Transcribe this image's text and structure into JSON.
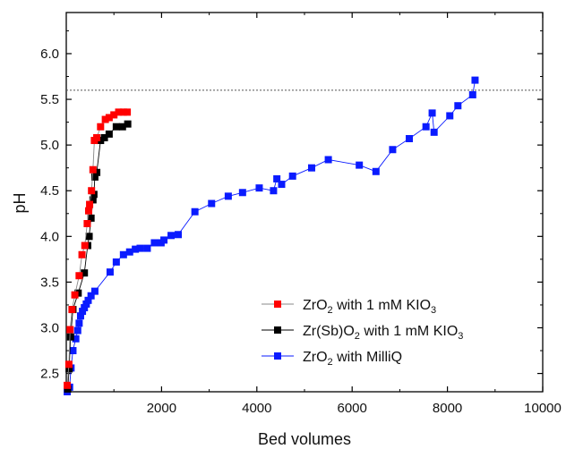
{
  "chart_data": {
    "type": "scatter",
    "title": "",
    "xlabel": "Bed volumes",
    "ylabel": "pH",
    "xlim": [
      0,
      10000
    ],
    "ylim": [
      2.3,
      6.45
    ],
    "x_ticks": [
      2000,
      4000,
      6000,
      8000,
      10000
    ],
    "y_ticks": [
      2.5,
      3.0,
      3.5,
      4.0,
      4.5,
      5.0,
      5.5,
      6.0
    ],
    "x_tick_labels": [
      "2000",
      "4000",
      "6000",
      "8000",
      "10000"
    ],
    "y_tick_labels": [
      "2.5",
      "3.0",
      "3.5",
      "4.0",
      "4.5",
      "5.0",
      "5.5",
      "6.0"
    ],
    "grid": false,
    "legend_position": "lower-right",
    "reference_lines": [
      {
        "y": 5.6,
        "style": "dotted",
        "color": "#555555"
      }
    ],
    "series": [
      {
        "legend": {
          "base": "ZrO",
          "sub": "2",
          "suffix": " with 1 mM KIO",
          "sub2": "3"
        },
        "color": "#ff0000",
        "line_color": "#888888",
        "marker": "square",
        "points": [
          [
            20,
            2.37
          ],
          [
            55,
            2.6
          ],
          [
            80,
            2.98
          ],
          [
            120,
            3.2
          ],
          [
            180,
            3.36
          ],
          [
            270,
            3.57
          ],
          [
            330,
            3.8
          ],
          [
            390,
            3.9
          ],
          [
            440,
            4.14
          ],
          [
            470,
            4.28
          ],
          [
            490,
            4.35
          ],
          [
            530,
            4.5
          ],
          [
            560,
            4.73
          ],
          [
            590,
            5.05
          ],
          [
            640,
            5.08
          ],
          [
            720,
            5.2
          ],
          [
            820,
            5.28
          ],
          [
            900,
            5.3
          ],
          [
            1000,
            5.33
          ],
          [
            1100,
            5.36
          ],
          [
            1200,
            5.36
          ],
          [
            1280,
            5.36
          ]
        ]
      },
      {
        "legend": {
          "base": "Zr(Sb)O",
          "sub": "2",
          "suffix": " with 1 mM KIO",
          "sub2": "3"
        },
        "color": "#000000",
        "line_color": "#000000",
        "marker": "square",
        "points": [
          [
            30,
            2.33
          ],
          [
            60,
            2.55
          ],
          [
            90,
            2.9
          ],
          [
            140,
            3.2
          ],
          [
            250,
            3.38
          ],
          [
            380,
            3.6
          ],
          [
            450,
            3.9
          ],
          [
            480,
            4.0
          ],
          [
            520,
            4.2
          ],
          [
            560,
            4.4
          ],
          [
            580,
            4.46
          ],
          [
            600,
            4.65
          ],
          [
            640,
            4.7
          ],
          [
            720,
            5.05
          ],
          [
            800,
            5.08
          ],
          [
            900,
            5.12
          ],
          [
            1050,
            5.2
          ],
          [
            1180,
            5.2
          ],
          [
            1290,
            5.23
          ]
        ]
      },
      {
        "legend": {
          "base": "ZrO",
          "sub": "2",
          "suffix": " with MilliQ",
          "sub2": ""
        },
        "color": "#0a1bff",
        "line_color": "#0a1bff",
        "marker": "square",
        "points": [
          [
            20,
            2.3
          ],
          [
            70,
            2.35
          ],
          [
            100,
            2.56
          ],
          [
            140,
            2.75
          ],
          [
            200,
            2.88
          ],
          [
            240,
            2.97
          ],
          [
            270,
            3.05
          ],
          [
            300,
            3.13
          ],
          [
            340,
            3.18
          ],
          [
            380,
            3.22
          ],
          [
            420,
            3.26
          ],
          [
            460,
            3.3
          ],
          [
            520,
            3.35
          ],
          [
            600,
            3.4
          ],
          [
            920,
            3.61
          ],
          [
            1050,
            3.72
          ],
          [
            1200,
            3.8
          ],
          [
            1330,
            3.83
          ],
          [
            1450,
            3.86
          ],
          [
            1550,
            3.87
          ],
          [
            1700,
            3.87
          ],
          [
            1850,
            3.93
          ],
          [
            1990,
            3.93
          ],
          [
            2050,
            3.96
          ],
          [
            2200,
            4.01
          ],
          [
            2350,
            4.02
          ],
          [
            2700,
            4.27
          ],
          [
            3050,
            4.36
          ],
          [
            3400,
            4.44
          ],
          [
            3700,
            4.48
          ],
          [
            4050,
            4.53
          ],
          [
            4350,
            4.5
          ],
          [
            4420,
            4.63
          ],
          [
            4520,
            4.57
          ],
          [
            4750,
            4.66
          ],
          [
            5150,
            4.75
          ],
          [
            5500,
            4.84
          ],
          [
            6150,
            4.78
          ],
          [
            6500,
            4.71
          ],
          [
            6850,
            4.95
          ],
          [
            7200,
            5.07
          ],
          [
            7550,
            5.2
          ],
          [
            7680,
            5.35
          ],
          [
            7720,
            5.14
          ],
          [
            8050,
            5.32
          ],
          [
            8220,
            5.43
          ],
          [
            8530,
            5.55
          ],
          [
            8580,
            5.71
          ]
        ]
      }
    ]
  }
}
